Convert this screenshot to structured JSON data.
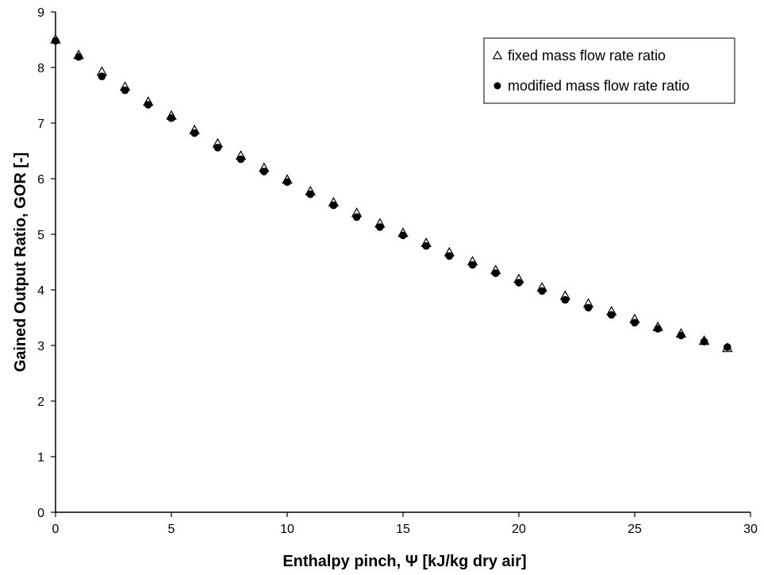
{
  "chart_data": {
    "type": "scatter",
    "xlabel": "Enthalpy pinch, Ψ [kJ/kg dry air]",
    "ylabel": "Gained Output Ratio, GOR [-]",
    "xlim": [
      0,
      30
    ],
    "ylim": [
      0,
      9
    ],
    "xticks": [
      0,
      5,
      10,
      15,
      20,
      25,
      30
    ],
    "yticks": [
      0,
      1,
      2,
      3,
      4,
      5,
      6,
      7,
      8,
      9
    ],
    "grid": false,
    "legend_position": "top-right",
    "series": [
      {
        "name": "fixed mass flow rate ratio",
        "marker": "triangle-open",
        "color": "#000000",
        "x": [
          0,
          1,
          2,
          3,
          4,
          5,
          6,
          7,
          8,
          9,
          10,
          11,
          12,
          13,
          14,
          15,
          16,
          17,
          18,
          19,
          20,
          21,
          22,
          23,
          24,
          25,
          26,
          27,
          28,
          29
        ],
        "y": [
          8.5,
          8.22,
          7.92,
          7.65,
          7.38,
          7.13,
          6.87,
          6.63,
          6.41,
          6.19,
          5.98,
          5.77,
          5.57,
          5.38,
          5.19,
          5.02,
          4.84,
          4.67,
          4.51,
          4.35,
          4.19,
          4.04,
          3.89,
          3.75,
          3.61,
          3.47,
          3.33,
          3.21,
          3.08,
          2.95
        ]
      },
      {
        "name": "modified mass flow rate ratio",
        "marker": "circle-filled",
        "color": "#000000",
        "x": [
          0,
          1,
          2,
          3,
          4,
          5,
          6,
          7,
          8,
          9,
          10,
          11,
          12,
          13,
          14,
          15,
          16,
          17,
          18,
          19,
          20,
          21,
          22,
          23,
          24,
          25,
          26,
          27,
          28,
          29
        ],
        "y": [
          8.48,
          8.19,
          7.84,
          7.59,
          7.33,
          7.09,
          6.82,
          6.56,
          6.35,
          6.13,
          5.94,
          5.72,
          5.52,
          5.31,
          5.13,
          4.98,
          4.79,
          4.61,
          4.45,
          4.3,
          4.13,
          3.98,
          3.82,
          3.68,
          3.55,
          3.41,
          3.3,
          3.18,
          3.07,
          2.97
        ]
      }
    ]
  }
}
